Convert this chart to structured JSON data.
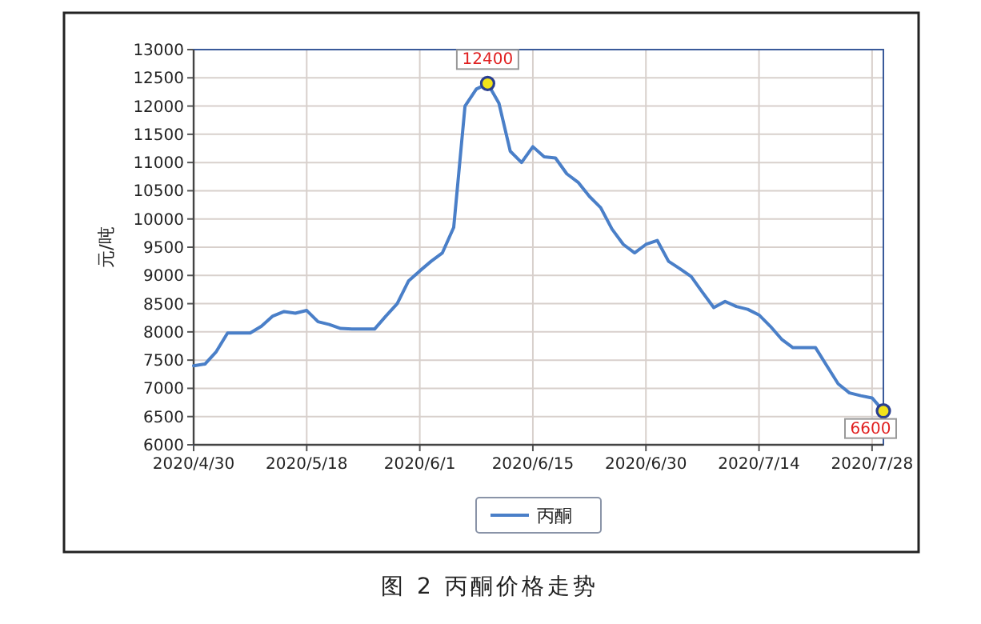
{
  "chart_data": {
    "type": "line",
    "title": "图 2  丙酮价格走势",
    "ylabel": "元/吨",
    "categories": [
      "2020/4/30",
      null,
      null,
      null,
      null,
      null,
      null,
      null,
      null,
      null,
      "2020/5/18",
      null,
      null,
      null,
      null,
      null,
      null,
      null,
      null,
      null,
      "2020/6/1",
      null,
      null,
      null,
      null,
      null,
      null,
      null,
      null,
      null,
      "2020/6/15",
      null,
      null,
      null,
      null,
      null,
      null,
      null,
      null,
      null,
      "2020/6/30",
      null,
      null,
      null,
      null,
      null,
      null,
      null,
      null,
      null,
      "2020/7/14",
      null,
      null,
      null,
      null,
      null,
      null,
      null,
      null,
      null,
      "2020/7/28",
      null
    ],
    "series": [
      {
        "name": "丙酮",
        "color": "#4a7fc8",
        "values": [
          7400,
          7430,
          7650,
          7980,
          7980,
          7980,
          8100,
          8280,
          8360,
          8330,
          8380,
          8180,
          8130,
          8060,
          8050,
          8050,
          8050,
          8280,
          8500,
          8900,
          9080,
          9250,
          9400,
          9850,
          12000,
          12300,
          12400,
          12050,
          11200,
          11000,
          11280,
          11100,
          11080,
          10800,
          10650,
          10400,
          10200,
          9820,
          9550,
          9400,
          9550,
          9620,
          9250,
          9120,
          8980,
          8700,
          8430,
          8540,
          8450,
          8400,
          8300,
          8100,
          7870,
          7720,
          7720,
          7720,
          7400,
          7080,
          6920,
          6870,
          6830,
          6600
        ],
        "value_labels": [
          null,
          null,
          null,
          null,
          null,
          null,
          null,
          null,
          null,
          null,
          null,
          null,
          null,
          null,
          null,
          null,
          null,
          null,
          null,
          null,
          null,
          null,
          null,
          null,
          null,
          null,
          "12400",
          null,
          null,
          null,
          null,
          null,
          null,
          null,
          null,
          null,
          null,
          null,
          null,
          null,
          null,
          null,
          null,
          null,
          null,
          null,
          null,
          null,
          null,
          null,
          null,
          null,
          null,
          null,
          null,
          null,
          null,
          null,
          null,
          null,
          null,
          "6600"
        ]
      }
    ],
    "ylim": [
      6000,
      13000
    ],
    "yticks": [
      6000,
      6500,
      7000,
      7500,
      8000,
      8500,
      9000,
      9500,
      10000,
      10500,
      11000,
      11500,
      12000,
      12500,
      13000
    ],
    "grid": true,
    "legend": "bottom"
  }
}
